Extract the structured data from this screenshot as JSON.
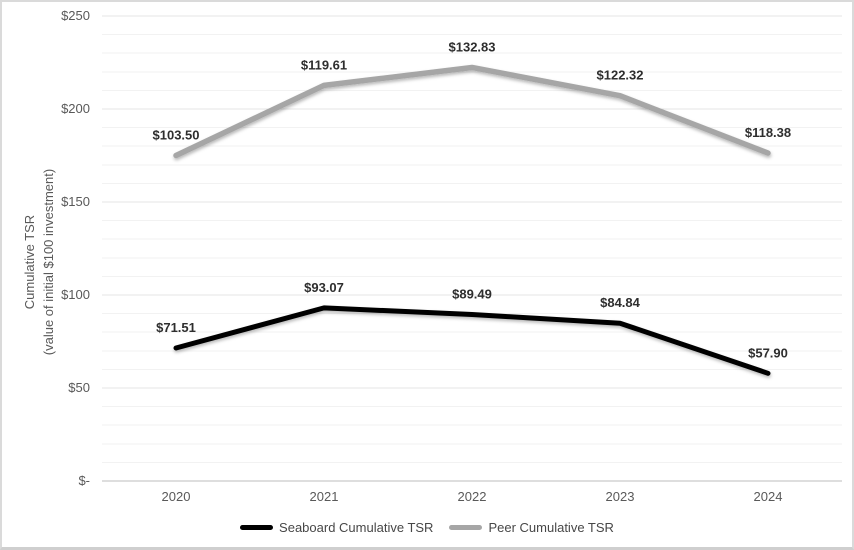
{
  "chart_data": {
    "type": "line",
    "stacked": true,
    "title": "",
    "categories": [
      "2020",
      "2021",
      "2022",
      "2023",
      "2024"
    ],
    "series": [
      {
        "name": "Seaboard Cumulative TSR",
        "color": "#000000",
        "values": [
          71.51,
          93.07,
          89.49,
          84.84,
          57.9
        ],
        "point_labels": [
          "$71.51",
          "$93.07",
          "$89.49",
          "$84.84",
          "$57.90"
        ]
      },
      {
        "name": "Peer Cumulative TSR",
        "color": "#a6a6a6",
        "values": [
          103.5,
          119.61,
          132.83,
          122.32,
          118.38
        ],
        "point_labels": [
          "$103.50",
          "$119.61",
          "$132.83",
          "$122.32",
          "$118.38"
        ]
      }
    ],
    "y_axis": {
      "title_line1": "Cumulative TSR",
      "title_line2": "(value of initial $100 investment)",
      "tick_labels": [
        "$250",
        "$200",
        "$150",
        "$100",
        "$50",
        "$-"
      ],
      "min": 0,
      "max": 250,
      "major_unit": 50,
      "minor_unit": 10
    },
    "x_axis": {
      "tick_labels": [
        "2020",
        "2021",
        "2022",
        "2023",
        "2024"
      ]
    },
    "legend_position": "bottom",
    "gridlines": {
      "minor": true,
      "major": true,
      "minor_color": "#f2f2f2",
      "major_color": "#e4e4e4",
      "zero_color": "#bdbdbd"
    }
  }
}
